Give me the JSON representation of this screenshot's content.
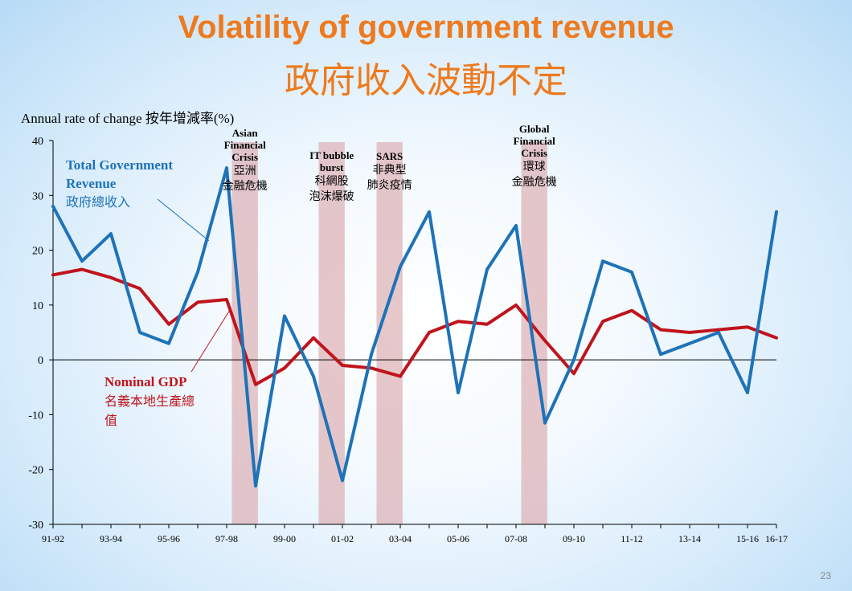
{
  "title_en": "Volatility of government revenue",
  "title_zh": "政府收入波動不定",
  "page_number": "23",
  "colors": {
    "title": "#ee7a1e",
    "revenue": "#1e72b8",
    "gdp": "#c0141c",
    "band": "#dcb2b6"
  },
  "chart_data": {
    "type": "line",
    "ylabel": "Annual rate of change 按年增減率(%)",
    "ylim": [
      -30,
      40
    ],
    "yticks": [
      40,
      30,
      20,
      10,
      0,
      -10,
      -20,
      -30
    ],
    "x": [
      "91-92",
      "92-93",
      "93-94",
      "94-95",
      "95-96",
      "96-97",
      "97-98",
      "98-99",
      "99-00",
      "00-01",
      "01-02",
      "02-03",
      "03-04",
      "04-05",
      "05-06",
      "06-07",
      "07-08",
      "08-09",
      "09-10",
      "10-11",
      "11-12",
      "12-13",
      "13-14",
      "14-15",
      "15-16",
      "16-17"
    ],
    "xtick_labels": [
      "91-92",
      "93-94",
      "95-96",
      "97-98",
      "99-00",
      "01-02",
      "03-04",
      "05-06",
      "07-08",
      "09-10",
      "11-12",
      "13-14",
      "15-16",
      "16-17"
    ],
    "series": [
      {
        "name": "Total Government Revenue",
        "name_zh": "政府總收入",
        "color": "#1e72b8",
        "values": [
          28,
          18,
          23,
          5,
          3,
          16,
          35,
          -23,
          8,
          -3,
          -22,
          1,
          17,
          27,
          -6,
          16.5,
          24.5,
          -11.5,
          0,
          18,
          16,
          1,
          3,
          5,
          -6,
          27
        ]
      },
      {
        "name": "Nominal GDP",
        "name_zh_lines": [
          "名義本地生產總",
          "值"
        ],
        "color": "#c0141c",
        "values": [
          15.5,
          16.5,
          15,
          13,
          6.5,
          10.5,
          11,
          -4.5,
          -1.5,
          4,
          -1,
          -1.5,
          -3,
          5,
          7,
          6.5,
          10,
          3.5,
          -2.5,
          7,
          9,
          5.5,
          5,
          5.5,
          6,
          4
        ]
      }
    ],
    "bands": [
      {
        "from": "97-98",
        "to": "98-99",
        "label_en": [
          "Asian",
          "Financial",
          "Crisis"
        ],
        "label_zh": [
          "亞洲",
          "金融危機"
        ]
      },
      {
        "from": "00-01",
        "to": "01-02",
        "label_en": [
          "IT bubble",
          "burst"
        ],
        "label_zh": [
          "科網股",
          "泡沫爆破"
        ]
      },
      {
        "from": "02-03",
        "to": "03-04",
        "label_en": [
          "SARS"
        ],
        "label_zh": [
          "非典型",
          "肺炎疫情"
        ]
      },
      {
        "from": "07-08",
        "to": "08-09",
        "label_en": [
          "Global",
          "Financial",
          "Crisis"
        ],
        "label_zh": [
          "環球",
          "金融危機"
        ]
      }
    ],
    "grid": false,
    "legend": "inline-labels"
  }
}
